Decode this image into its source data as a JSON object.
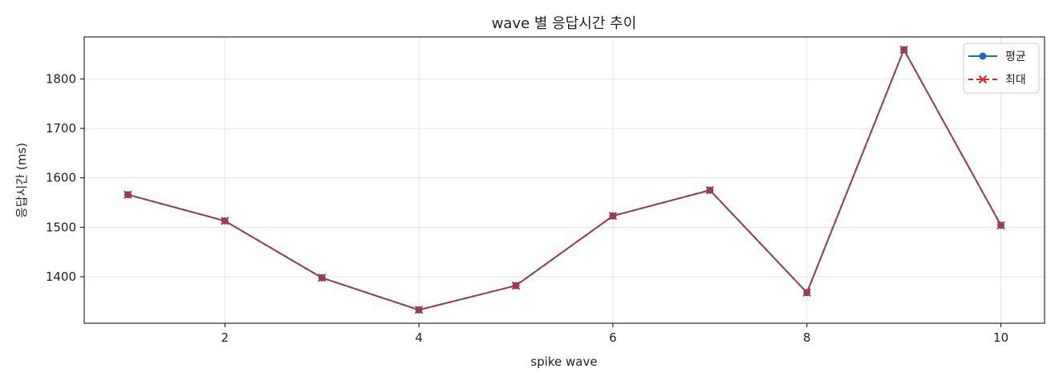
{
  "chart_data": {
    "type": "line",
    "title": "wave 별 응답시간 추이",
    "xlabel": "spike wave",
    "ylabel": "응답시간 (ms)",
    "x": [
      1,
      2,
      3,
      4,
      5,
      6,
      7,
      8,
      9,
      10
    ],
    "xlim": [
      0.55,
      10.45
    ],
    "ylim": [
      1306,
      1885
    ],
    "xticks": [
      2,
      4,
      6,
      8,
      10
    ],
    "yticks": [
      1400,
      1500,
      1600,
      1700,
      1800
    ],
    "grid": true,
    "legend_position": "top-right",
    "series": [
      {
        "name": "평균",
        "values": [
          1566,
          1513,
          1398,
          1333,
          1382,
          1523,
          1575,
          1368,
          1859,
          1504
        ],
        "color": "#1f68b4",
        "marker": "circle",
        "line_style": "solid"
      },
      {
        "name": "최대",
        "values": [
          1566,
          1513,
          1398,
          1333,
          1382,
          1523,
          1575,
          1368,
          1859,
          1504
        ],
        "color": "#d62728",
        "marker": "x",
        "line_style": "dashed"
      }
    ]
  }
}
